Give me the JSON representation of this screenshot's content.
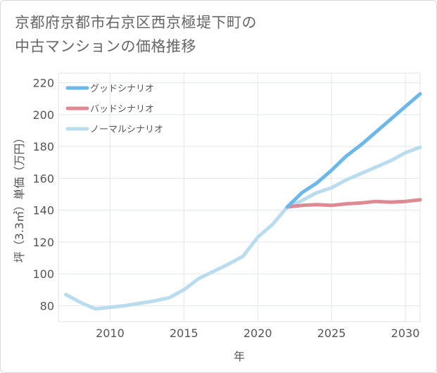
{
  "title_lines": [
    "京都府京都市右京区西京極堤下町の",
    "中古マンションの価格推移"
  ],
  "chart_data": {
    "type": "line",
    "title": "京都府京都市右京区西京極堤下町の中古マンションの価格推移",
    "xlabel": "年",
    "ylabel": "坪（3.3㎡）単価（万円）",
    "xlim": [
      2006.5,
      2031
    ],
    "ylim": [
      70,
      226
    ],
    "xticks": [
      2010,
      2015,
      2020,
      2025,
      2030
    ],
    "yticks": [
      80,
      100,
      120,
      140,
      160,
      180,
      200,
      220
    ],
    "grid": true,
    "legend_position": "top-left",
    "series": [
      {
        "name": "グッドシナリオ",
        "color": "#6cb8e8",
        "x": [
          2022,
          2023,
          2024,
          2025,
          2026,
          2027,
          2028,
          2029,
          2030,
          2031
        ],
        "y": [
          142,
          151,
          157,
          165,
          174,
          181,
          189,
          197,
          205,
          213
        ]
      },
      {
        "name": "バッドシナリオ",
        "color": "#df8a93",
        "x": [
          2022,
          2023,
          2024,
          2025,
          2026,
          2027,
          2028,
          2029,
          2030,
          2031
        ],
        "y": [
          142,
          143,
          143.5,
          143,
          144,
          144.5,
          145.5,
          145,
          145.5,
          146.5
        ]
      },
      {
        "name": "ノーマルシナリオ",
        "color": "#b9dcee",
        "x": [
          2007,
          2008,
          2009,
          2010,
          2011,
          2012,
          2013,
          2014,
          2015,
          2016,
          2017,
          2018,
          2019,
          2020,
          2021,
          2022,
          2023,
          2024,
          2025,
          2026,
          2027,
          2028,
          2029,
          2030,
          2031
        ],
        "y": [
          87,
          82,
          78,
          79,
          80,
          81.5,
          83,
          85,
          90,
          97,
          101.5,
          106,
          111,
          123,
          131,
          142,
          146,
          151,
          154,
          159,
          163,
          167,
          171,
          176,
          179.5
        ]
      }
    ]
  }
}
